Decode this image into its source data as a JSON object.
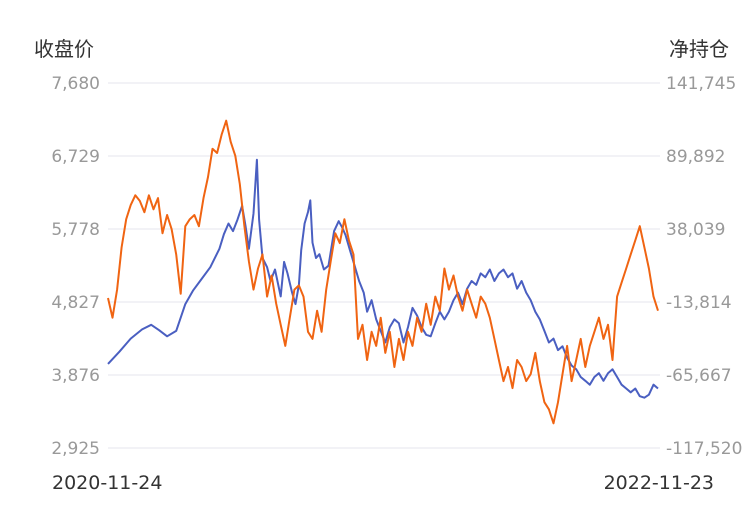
{
  "chart_data": {
    "type": "line",
    "left_axis_title": "收盘价",
    "right_axis_title": "净持仓",
    "left_ticks": [
      "7,680",
      "6,729",
      "5,778",
      "4,827",
      "3,876",
      "2,925"
    ],
    "right_ticks": [
      "141,745",
      "89,892",
      "38,039",
      "-13,814",
      "-65,667",
      "-117,520"
    ],
    "ylim_left": [
      2925,
      7680
    ],
    "ylim_right": [
      -117520,
      141745
    ],
    "x_start": "2020-11-24",
    "x_end": "2022-11-23",
    "grid": "horizontal",
    "series": [
      {
        "axis": "left",
        "color": "#4a5fc1",
        "points": [
          [
            0,
            4020
          ],
          [
            10,
            4180
          ],
          [
            20,
            4350
          ],
          [
            30,
            4470
          ],
          [
            38,
            4530
          ],
          [
            45,
            4460
          ],
          [
            52,
            4380
          ],
          [
            60,
            4450
          ],
          [
            68,
            4800
          ],
          [
            75,
            4980
          ],
          [
            82,
            5120
          ],
          [
            90,
            5280
          ],
          [
            98,
            5520
          ],
          [
            102,
            5710
          ],
          [
            106,
            5850
          ],
          [
            110,
            5750
          ],
          [
            114,
            5900
          ],
          [
            118,
            6080
          ],
          [
            121,
            5820
          ],
          [
            124,
            5520
          ],
          [
            128,
            5980
          ],
          [
            131,
            6680
          ],
          [
            133,
            5900
          ],
          [
            136,
            5400
          ],
          [
            140,
            5280
          ],
          [
            143,
            5100
          ],
          [
            147,
            5250
          ],
          [
            152,
            4900
          ],
          [
            155,
            5350
          ],
          [
            158,
            5200
          ],
          [
            162,
            4950
          ],
          [
            165,
            4800
          ],
          [
            168,
            5050
          ],
          [
            170,
            5500
          ],
          [
            173,
            5850
          ],
          [
            176,
            6000
          ],
          [
            178,
            6150
          ],
          [
            180,
            5600
          ],
          [
            183,
            5400
          ],
          [
            186,
            5450
          ],
          [
            190,
            5250
          ],
          [
            194,
            5300
          ],
          [
            199,
            5750
          ],
          [
            203,
            5880
          ],
          [
            206,
            5800
          ],
          [
            209,
            5700
          ],
          [
            213,
            5500
          ],
          [
            217,
            5300
          ],
          [
            221,
            5100
          ],
          [
            225,
            4950
          ],
          [
            228,
            4700
          ],
          [
            232,
            4850
          ],
          [
            236,
            4600
          ],
          [
            240,
            4450
          ],
          [
            244,
            4300
          ],
          [
            248,
            4500
          ],
          [
            252,
            4600
          ],
          [
            256,
            4550
          ],
          [
            260,
            4300
          ],
          [
            264,
            4500
          ],
          [
            268,
            4750
          ],
          [
            272,
            4650
          ],
          [
            276,
            4500
          ],
          [
            280,
            4400
          ],
          [
            284,
            4380
          ],
          [
            288,
            4550
          ],
          [
            292,
            4700
          ],
          [
            296,
            4600
          ],
          [
            300,
            4700
          ],
          [
            304,
            4850
          ],
          [
            308,
            4950
          ],
          [
            312,
            4800
          ],
          [
            316,
            5000
          ],
          [
            320,
            5100
          ],
          [
            324,
            5050
          ],
          [
            328,
            5200
          ],
          [
            332,
            5150
          ],
          [
            336,
            5250
          ],
          [
            340,
            5100
          ],
          [
            344,
            5200
          ],
          [
            348,
            5250
          ],
          [
            352,
            5150
          ],
          [
            356,
            5200
          ],
          [
            360,
            5000
          ],
          [
            364,
            5100
          ],
          [
            368,
            4950
          ],
          [
            372,
            4850
          ],
          [
            376,
            4700
          ],
          [
            380,
            4600
          ],
          [
            384,
            4450
          ],
          [
            388,
            4300
          ],
          [
            392,
            4350
          ],
          [
            396,
            4200
          ],
          [
            400,
            4250
          ],
          [
            404,
            4100
          ],
          [
            408,
            4000
          ],
          [
            412,
            3950
          ],
          [
            416,
            3850
          ],
          [
            420,
            3800
          ],
          [
            424,
            3750
          ],
          [
            428,
            3850
          ],
          [
            432,
            3900
          ],
          [
            436,
            3800
          ],
          [
            440,
            3900
          ],
          [
            444,
            3950
          ],
          [
            448,
            3850
          ],
          [
            452,
            3750
          ],
          [
            456,
            3700
          ],
          [
            460,
            3650
          ],
          [
            464,
            3700
          ],
          [
            468,
            3600
          ],
          [
            472,
            3580
          ],
          [
            476,
            3620
          ],
          [
            480,
            3750
          ],
          [
            484,
            3700
          ]
        ]
      },
      {
        "axis": "right",
        "color": "#f06412",
        "points": [
          [
            0,
            -11000
          ],
          [
            4,
            -25000
          ],
          [
            8,
            -5000
          ],
          [
            12,
            25000
          ],
          [
            16,
            45000
          ],
          [
            20,
            55000
          ],
          [
            24,
            62000
          ],
          [
            28,
            58000
          ],
          [
            32,
            50000
          ],
          [
            36,
            62000
          ],
          [
            40,
            52000
          ],
          [
            44,
            60000
          ],
          [
            48,
            35000
          ],
          [
            52,
            48000
          ],
          [
            56,
            38000
          ],
          [
            60,
            20000
          ],
          [
            64,
            -8000
          ],
          [
            68,
            40000
          ],
          [
            72,
            45000
          ],
          [
            76,
            48000
          ],
          [
            80,
            40000
          ],
          [
            84,
            60000
          ],
          [
            88,
            75000
          ],
          [
            92,
            95000
          ],
          [
            96,
            92000
          ],
          [
            100,
            105000
          ],
          [
            104,
            115000
          ],
          [
            108,
            100000
          ],
          [
            112,
            90000
          ],
          [
            116,
            70000
          ],
          [
            120,
            40000
          ],
          [
            124,
            15000
          ],
          [
            128,
            -5000
          ],
          [
            132,
            10000
          ],
          [
            136,
            20000
          ],
          [
            140,
            -10000
          ],
          [
            144,
            5000
          ],
          [
            148,
            -15000
          ],
          [
            152,
            -30000
          ],
          [
            156,
            -45000
          ],
          [
            160,
            -25000
          ],
          [
            164,
            -5000
          ],
          [
            168,
            -2000
          ],
          [
            172,
            -10000
          ],
          [
            176,
            -35000
          ],
          [
            180,
            -40000
          ],
          [
            184,
            -20000
          ],
          [
            188,
            -35000
          ],
          [
            192,
            -5000
          ],
          [
            196,
            15000
          ],
          [
            200,
            35000
          ],
          [
            204,
            28000
          ],
          [
            208,
            45000
          ],
          [
            212,
            30000
          ],
          [
            216,
            20000
          ],
          [
            220,
            -40000
          ],
          [
            224,
            -30000
          ],
          [
            228,
            -55000
          ],
          [
            232,
            -35000
          ],
          [
            236,
            -45000
          ],
          [
            240,
            -25000
          ],
          [
            244,
            -50000
          ],
          [
            248,
            -35000
          ],
          [
            252,
            -60000
          ],
          [
            256,
            -40000
          ],
          [
            260,
            -55000
          ],
          [
            264,
            -35000
          ],
          [
            268,
            -45000
          ],
          [
            272,
            -25000
          ],
          [
            276,
            -35000
          ],
          [
            280,
            -15000
          ],
          [
            284,
            -30000
          ],
          [
            288,
            -10000
          ],
          [
            292,
            -20000
          ],
          [
            296,
            10000
          ],
          [
            300,
            -5000
          ],
          [
            304,
            5000
          ],
          [
            308,
            -10000
          ],
          [
            312,
            -20000
          ],
          [
            316,
            -5000
          ],
          [
            320,
            -15000
          ],
          [
            324,
            -25000
          ],
          [
            328,
            -10000
          ],
          [
            332,
            -15000
          ],
          [
            336,
            -25000
          ],
          [
            340,
            -40000
          ],
          [
            344,
            -55000
          ],
          [
            348,
            -70000
          ],
          [
            352,
            -60000
          ],
          [
            356,
            -75000
          ],
          [
            360,
            -55000
          ],
          [
            364,
            -60000
          ],
          [
            368,
            -70000
          ],
          [
            372,
            -65000
          ],
          [
            376,
            -50000
          ],
          [
            380,
            -70000
          ],
          [
            384,
            -85000
          ],
          [
            388,
            -90000
          ],
          [
            392,
            -100000
          ],
          [
            396,
            -85000
          ],
          [
            400,
            -65000
          ],
          [
            404,
            -45000
          ],
          [
            408,
            -70000
          ],
          [
            412,
            -55000
          ],
          [
            416,
            -40000
          ],
          [
            420,
            -60000
          ],
          [
            424,
            -45000
          ],
          [
            428,
            -35000
          ],
          [
            432,
            -25000
          ],
          [
            436,
            -40000
          ],
          [
            440,
            -30000
          ],
          [
            444,
            -55000
          ],
          [
            448,
            -10000
          ],
          [
            452,
            0
          ],
          [
            456,
            10000
          ],
          [
            460,
            20000
          ],
          [
            464,
            30000
          ],
          [
            468,
            40000
          ],
          [
            472,
            25000
          ],
          [
            476,
            10000
          ],
          [
            480,
            -10000
          ],
          [
            484,
            -20000
          ]
        ]
      }
    ]
  }
}
